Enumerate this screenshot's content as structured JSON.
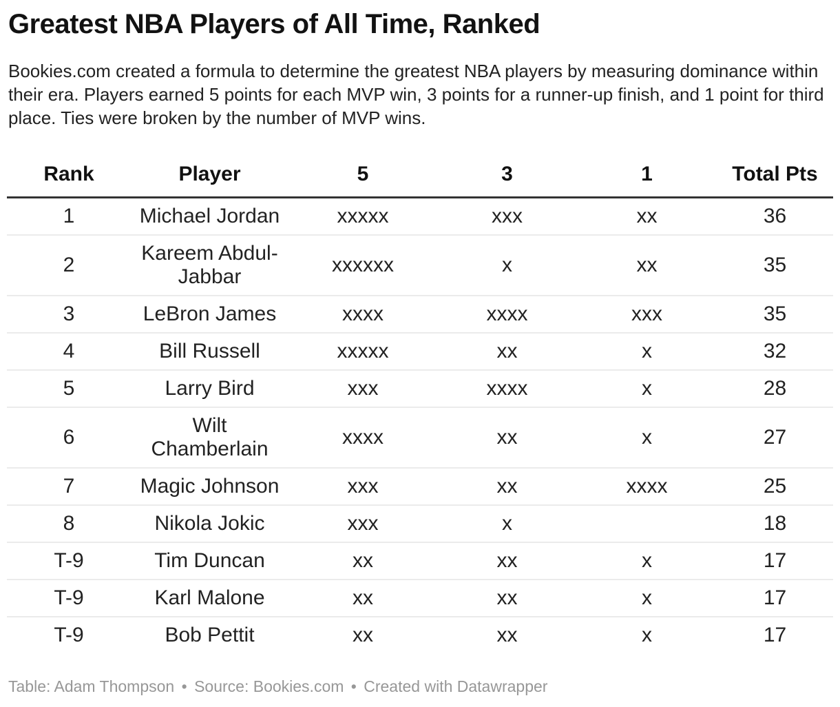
{
  "title": "Greatest NBA Players of All Time, Ranked",
  "description": "Bookies.com created a formula to determine the greatest NBA players by measuring dominance within their era. Players earned 5 points for each MVP win, 3 points for a runner-up finish, and 1 point for third place. Ties were broken by the number of MVP wins.",
  "chart_data": {
    "type": "table",
    "title": "Greatest NBA Players of All Time, Ranked",
    "columns": [
      "Rank",
      "Player",
      "5",
      "3",
      "1",
      "Total Pts"
    ],
    "rows": [
      [
        "1",
        "Michael Jordan",
        "xxxxx",
        "xxx",
        "xx",
        "36"
      ],
      [
        "2",
        "Kareem Abdul-Jabbar",
        "xxxxxx",
        "x",
        "xx",
        "35"
      ],
      [
        "3",
        "LeBron James",
        "xxxx",
        "xxxx",
        "xxx",
        "35"
      ],
      [
        "4",
        "Bill Russell",
        "xxxxx",
        "xx",
        "x",
        "32"
      ],
      [
        "5",
        "Larry Bird",
        "xxx",
        "xxxx",
        "x",
        "28"
      ],
      [
        "6",
        "Wilt Chamberlain",
        "xxxx",
        "xx",
        "x",
        "27"
      ],
      [
        "7",
        "Magic Johnson",
        "xxx",
        "xx",
        "xxxx",
        "25"
      ],
      [
        "8",
        "Nikola Jokic",
        "xxx",
        "x",
        "",
        "18"
      ],
      [
        "T-9",
        "Tim Duncan",
        "xx",
        "xx",
        "x",
        "17"
      ],
      [
        "T-9",
        "Karl Malone",
        "xx",
        "xx",
        "x",
        "17"
      ],
      [
        "T-9",
        "Bob Pettit",
        "xx",
        "xx",
        "x",
        "17"
      ]
    ],
    "notes": {
      "points_per_mvp_win": 5,
      "points_per_runner_up": 3,
      "points_per_third_place": 1
    }
  },
  "footer": {
    "table_credit": "Table: Adam Thompson",
    "source_label": "Source:",
    "source_name": "Bookies.com",
    "created_with": "Created with Datawrapper",
    "separator": "•"
  },
  "colors": {
    "header_rule": "#333333",
    "row_separator": "#ebebeb",
    "footer_text": "#979797",
    "text": "#222222"
  }
}
